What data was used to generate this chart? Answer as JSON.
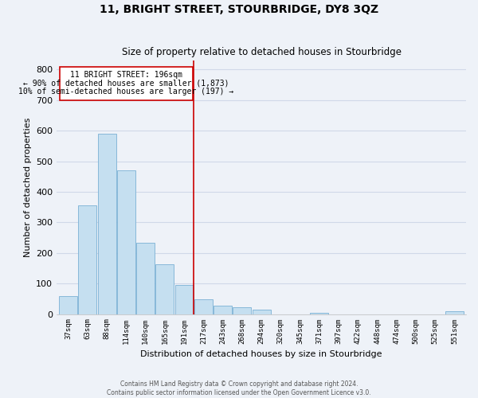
{
  "title": "11, BRIGHT STREET, STOURBRIDGE, DY8 3QZ",
  "subtitle": "Size of property relative to detached houses in Stourbridge",
  "xlabel": "Distribution of detached houses by size in Stourbridge",
  "ylabel": "Number of detached properties",
  "bar_labels": [
    "37sqm",
    "63sqm",
    "88sqm",
    "114sqm",
    "140sqm",
    "165sqm",
    "191sqm",
    "217sqm",
    "243sqm",
    "268sqm",
    "294sqm",
    "320sqm",
    "345sqm",
    "371sqm",
    "397sqm",
    "422sqm",
    "448sqm",
    "474sqm",
    "500sqm",
    "525sqm",
    "551sqm"
  ],
  "bar_values": [
    58,
    355,
    590,
    470,
    233,
    163,
    96,
    48,
    27,
    22,
    15,
    0,
    0,
    4,
    0,
    0,
    0,
    0,
    0,
    0,
    8
  ],
  "bar_color": "#c5dff0",
  "bar_edge_color": "#7ab0d4",
  "vline_color": "#cc0000",
  "annotation_title": "11 BRIGHT STREET: 196sqm",
  "annotation_line1": "← 90% of detached houses are smaller (1,873)",
  "annotation_line2": "10% of semi-detached houses are larger (197) →",
  "box_edge_color": "#cc0000",
  "ylim": [
    0,
    830
  ],
  "yticks": [
    0,
    100,
    200,
    300,
    400,
    500,
    600,
    700,
    800
  ],
  "footer1": "Contains HM Land Registry data © Crown copyright and database right 2024.",
  "footer2": "Contains public sector information licensed under the Open Government Licence v3.0.",
  "background_color": "#eef2f8",
  "grid_color": "#d0d8e8"
}
